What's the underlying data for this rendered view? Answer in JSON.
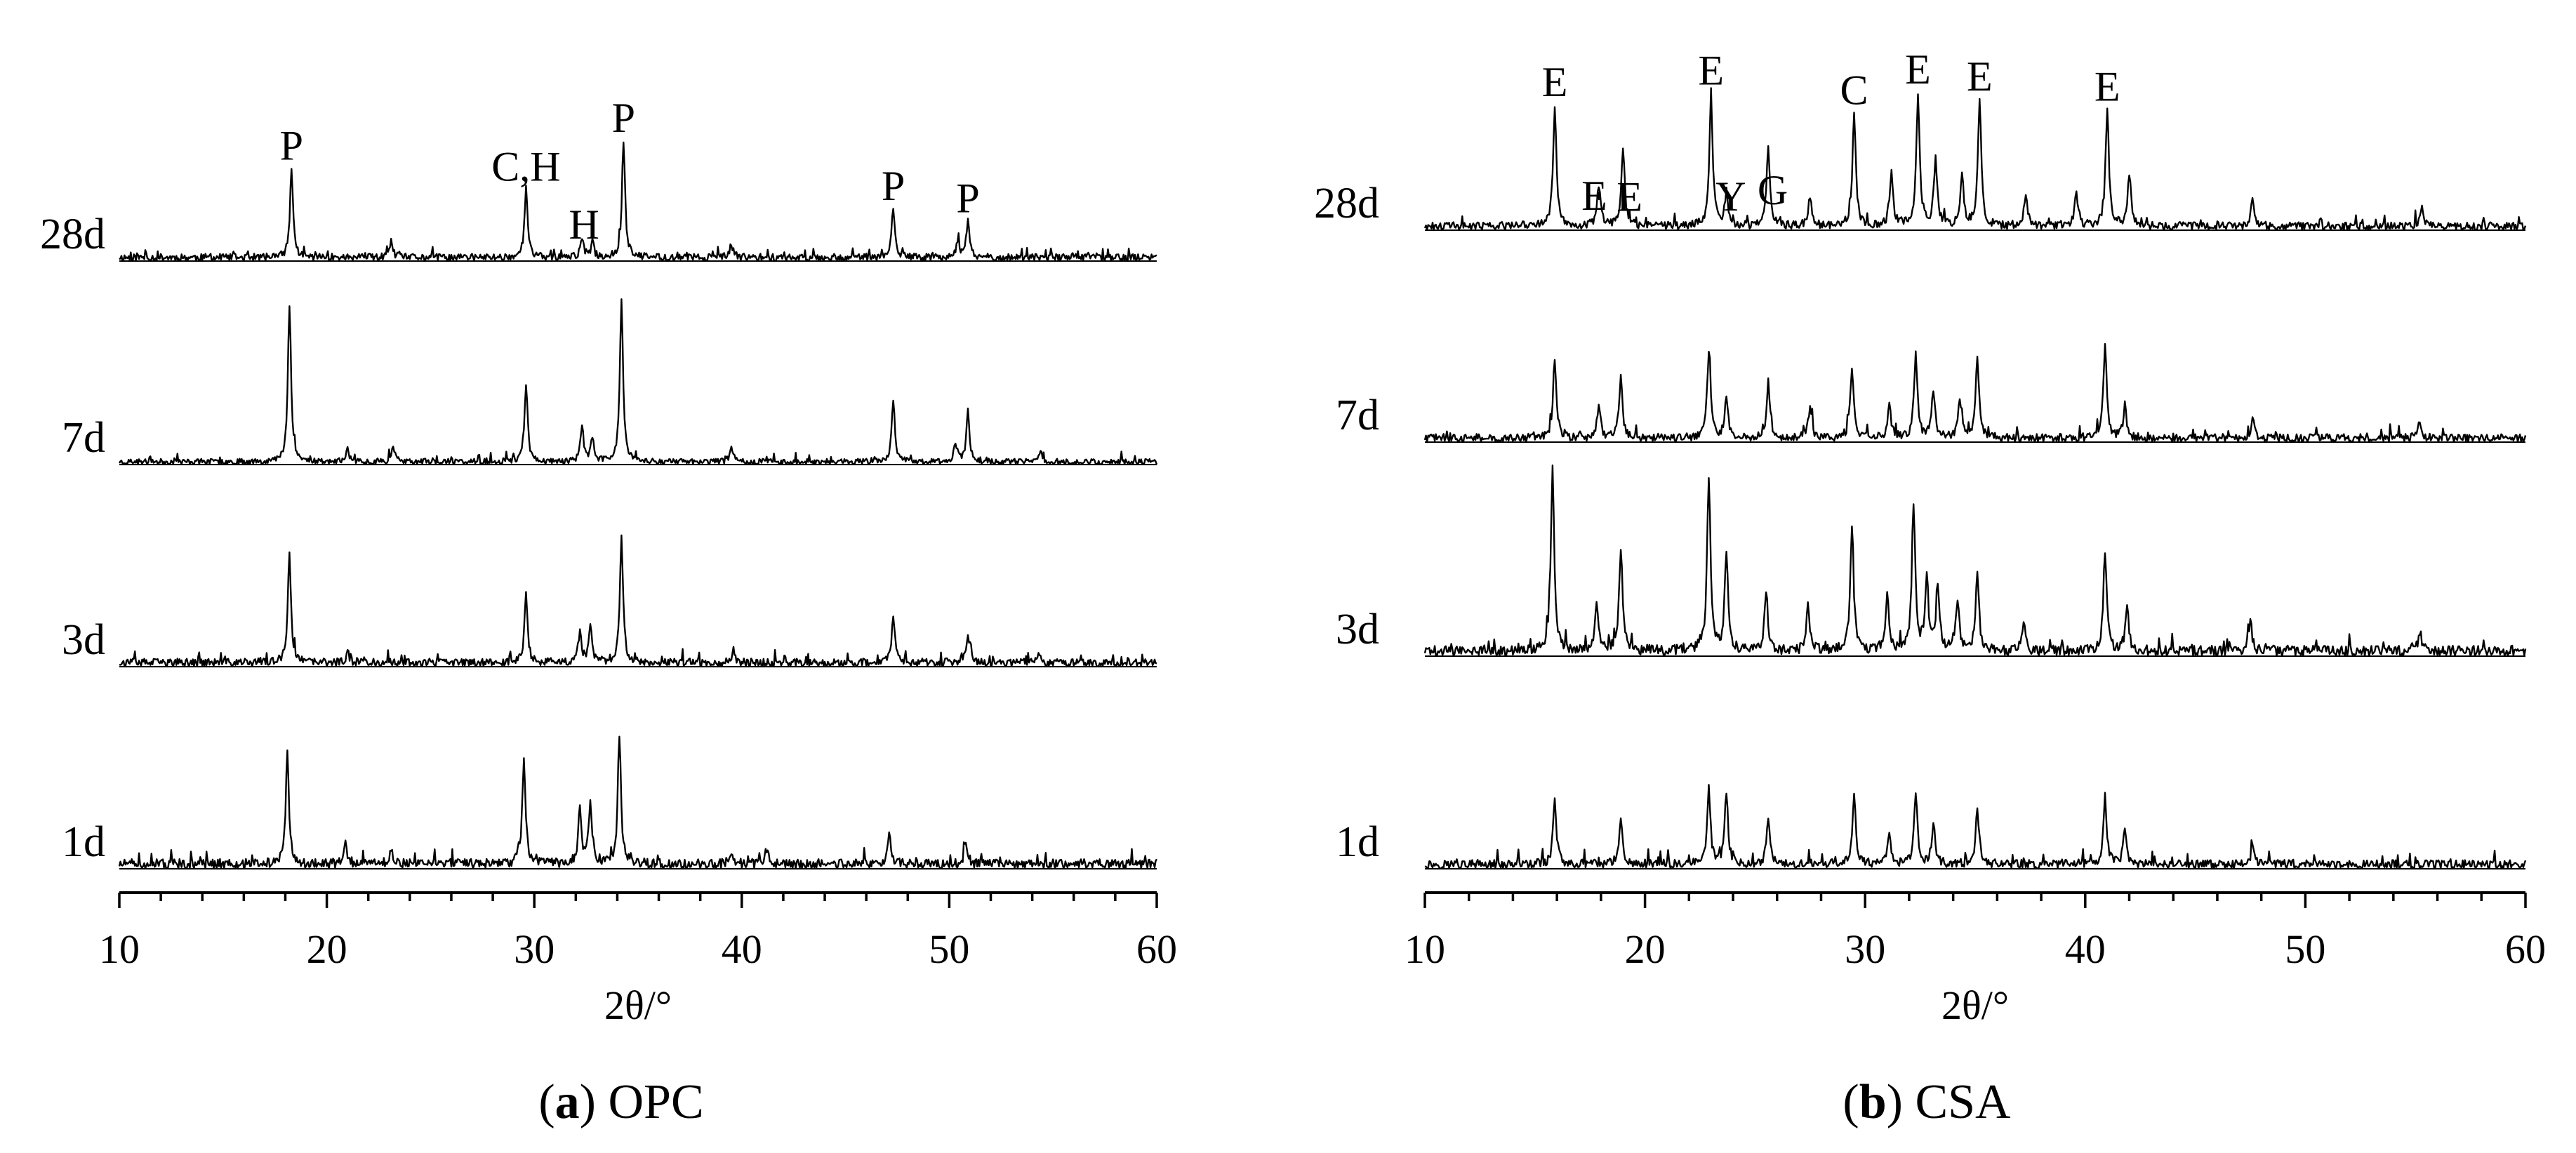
{
  "chart_data": [
    {
      "type": "line",
      "panel": "a",
      "caption_letter": "a",
      "caption_text": "OPC",
      "xlabel": "2θ/°",
      "ylabel": "",
      "xlim": [
        10,
        60
      ],
      "xticks": [
        10,
        20,
        30,
        40,
        50,
        60
      ],
      "grid": false,
      "series": [
        {
          "name": "28d",
          "noise": 0.045,
          "seed": 11,
          "peaks": [
            [
              18.3,
              0.55
            ],
            [
              23.1,
              0.1
            ],
            [
              29.6,
              0.42
            ],
            [
              32.3,
              0.12
            ],
            [
              32.8,
              0.09
            ],
            [
              34.3,
              0.72
            ],
            [
              39.5,
              0.08
            ],
            [
              47.3,
              0.3
            ],
            [
              50.4,
              0.1
            ],
            [
              50.9,
              0.22
            ]
          ],
          "labels": [
            {
              "text": "P",
              "x": 18.3
            },
            {
              "text": "C,H",
              "x": 29.6
            },
            {
              "text": "H",
              "x": 32.4
            },
            {
              "text": "P",
              "x": 34.3
            },
            {
              "text": "P",
              "x": 47.3
            },
            {
              "text": "P",
              "x": 50.9
            }
          ]
        },
        {
          "name": "7d",
          "noise": 0.035,
          "seed": 23,
          "peaks": [
            [
              18.2,
              0.98
            ],
            [
              21.0,
              0.08
            ],
            [
              23.2,
              0.1
            ],
            [
              29.6,
              0.48
            ],
            [
              32.3,
              0.22
            ],
            [
              32.8,
              0.15
            ],
            [
              34.2,
              1.02
            ],
            [
              39.5,
              0.1
            ],
            [
              47.3,
              0.38
            ],
            [
              50.3,
              0.12
            ],
            [
              50.9,
              0.3
            ],
            [
              54.4,
              0.07
            ]
          ],
          "labels": []
        },
        {
          "name": "3d",
          "noise": 0.05,
          "seed": 37,
          "peaks": [
            [
              18.2,
              0.66
            ],
            [
              21.0,
              0.07
            ],
            [
              29.6,
              0.42
            ],
            [
              32.2,
              0.2
            ],
            [
              32.7,
              0.22
            ],
            [
              34.2,
              0.78
            ],
            [
              39.6,
              0.08
            ],
            [
              47.3,
              0.3
            ],
            [
              50.9,
              0.18
            ],
            [
              54.3,
              0.06
            ]
          ],
          "labels": []
        },
        {
          "name": "1d",
          "noise": 0.06,
          "seed": 51,
          "peaks": [
            [
              18.1,
              0.7
            ],
            [
              20.9,
              0.14
            ],
            [
              23.1,
              0.08
            ],
            [
              29.5,
              0.68
            ],
            [
              32.2,
              0.35
            ],
            [
              32.7,
              0.4
            ],
            [
              34.1,
              0.8
            ],
            [
              39.5,
              0.08
            ],
            [
              41.2,
              0.1
            ],
            [
              47.1,
              0.2
            ],
            [
              50.8,
              0.14
            ]
          ],
          "labels": []
        }
      ]
    },
    {
      "type": "line",
      "panel": "b",
      "caption_letter": "b",
      "caption_text": "CSA",
      "xlabel": "2θ/°",
      "ylabel": "",
      "xlim": [
        10,
        60
      ],
      "xticks": [
        10,
        20,
        30,
        40,
        50,
        60
      ],
      "grid": false,
      "series": [
        {
          "name": "28d",
          "noise": 0.05,
          "seed": 61,
          "peaks": [
            [
              15.9,
              0.75
            ],
            [
              17.9,
              0.25
            ],
            [
              19.0,
              0.48
            ],
            [
              23.0,
              0.82
            ],
            [
              23.7,
              0.2
            ],
            [
              25.6,
              0.48
            ],
            [
              27.5,
              0.18
            ],
            [
              29.5,
              0.7
            ],
            [
              31.2,
              0.32
            ],
            [
              32.4,
              0.82
            ],
            [
              33.2,
              0.42
            ],
            [
              34.4,
              0.3
            ],
            [
              35.2,
              0.78
            ],
            [
              37.3,
              0.2
            ],
            [
              39.6,
              0.2
            ],
            [
              41.0,
              0.72
            ],
            [
              42.0,
              0.32
            ],
            [
              47.6,
              0.15
            ],
            [
              55.3,
              0.12
            ]
          ],
          "labels": [
            {
              "text": "E",
              "x": 15.9
            },
            {
              "text": "E",
              "x": 17.7
            },
            {
              "text": "E",
              "x": 19.3
            },
            {
              "text": "E",
              "x": 23.0
            },
            {
              "text": "Y",
              "x": 23.9
            },
            {
              "text": "G",
              "x": 25.8
            },
            {
              "text": "C",
              "x": 29.5
            },
            {
              "text": "E",
              "x": 32.4
            },
            {
              "text": "E",
              "x": 35.2
            },
            {
              "text": "E",
              "x": 41.0
            }
          ]
        },
        {
          "name": "7d",
          "noise": 0.05,
          "seed": 73,
          "peaks": [
            [
              15.9,
              0.5
            ],
            [
              17.9,
              0.2
            ],
            [
              18.9,
              0.38
            ],
            [
              22.9,
              0.55
            ],
            [
              23.7,
              0.25
            ],
            [
              25.6,
              0.35
            ],
            [
              27.5,
              0.2
            ],
            [
              29.4,
              0.45
            ],
            [
              31.1,
              0.2
            ],
            [
              32.3,
              0.52
            ],
            [
              33.1,
              0.3
            ],
            [
              34.3,
              0.25
            ],
            [
              35.1,
              0.5
            ],
            [
              40.9,
              0.58
            ],
            [
              41.8,
              0.2
            ],
            [
              47.6,
              0.12
            ],
            [
              55.2,
              0.1
            ]
          ],
          "labels": []
        },
        {
          "name": "3d",
          "noise": 0.065,
          "seed": 89,
          "peaks": [
            [
              15.8,
              1.12
            ],
            [
              17.8,
              0.3
            ],
            [
              18.9,
              0.65
            ],
            [
              22.9,
              1.08
            ],
            [
              23.7,
              0.62
            ],
            [
              25.5,
              0.38
            ],
            [
              27.4,
              0.28
            ],
            [
              29.4,
              0.78
            ],
            [
              31.0,
              0.35
            ],
            [
              32.2,
              0.92
            ],
            [
              32.8,
              0.45
            ],
            [
              33.3,
              0.42
            ],
            [
              34.2,
              0.3
            ],
            [
              35.1,
              0.48
            ],
            [
              37.2,
              0.18
            ],
            [
              40.9,
              0.6
            ],
            [
              41.9,
              0.3
            ],
            [
              47.5,
              0.18
            ],
            [
              55.2,
              0.12
            ]
          ],
          "labels": []
        },
        {
          "name": "1d",
          "noise": 0.055,
          "seed": 97,
          "peaks": [
            [
              15.9,
              0.4
            ],
            [
              18.9,
              0.3
            ],
            [
              22.9,
              0.45
            ],
            [
              23.7,
              0.42
            ],
            [
              25.6,
              0.3
            ],
            [
              29.5,
              0.45
            ],
            [
              31.1,
              0.2
            ],
            [
              32.3,
              0.42
            ],
            [
              33.1,
              0.25
            ],
            [
              35.1,
              0.35
            ],
            [
              40.9,
              0.42
            ],
            [
              41.8,
              0.2
            ],
            [
              47.6,
              0.1
            ]
          ],
          "labels": []
        }
      ]
    }
  ]
}
